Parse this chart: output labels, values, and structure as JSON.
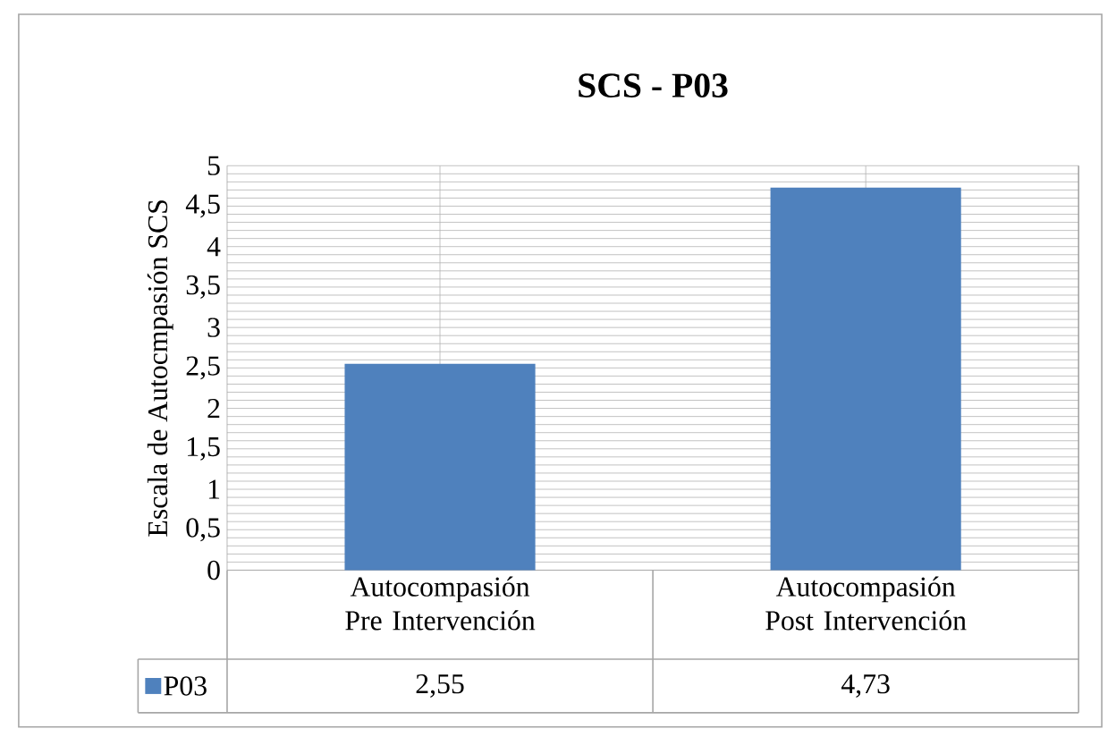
{
  "chart_data": {
    "type": "bar",
    "title": "SCS - P03",
    "ylabel": "Escala de Autocmpasión SCS",
    "categories": [
      "Autocompasión Pre Intervención",
      "Autocompasión Post Intervención"
    ],
    "series": [
      {
        "name": "P03",
        "color": "#4f81bd",
        "values": [
          2.55,
          4.73
        ],
        "value_labels": [
          "2,55",
          "4,73"
        ]
      }
    ],
    "ylim": [
      0,
      5
    ],
    "yticks": [
      0,
      {
        "value": 0.5,
        "label": "0,5"
      },
      1,
      {
        "value": 1.5,
        "label": "1,5"
      },
      2,
      {
        "value": 2.5,
        "label": "2,5"
      },
      3,
      {
        "value": 3.5,
        "label": "3,5"
      },
      4,
      {
        "value": 4.5,
        "label": "4,5"
      },
      5
    ],
    "grid": true,
    "legend": "bottom"
  }
}
